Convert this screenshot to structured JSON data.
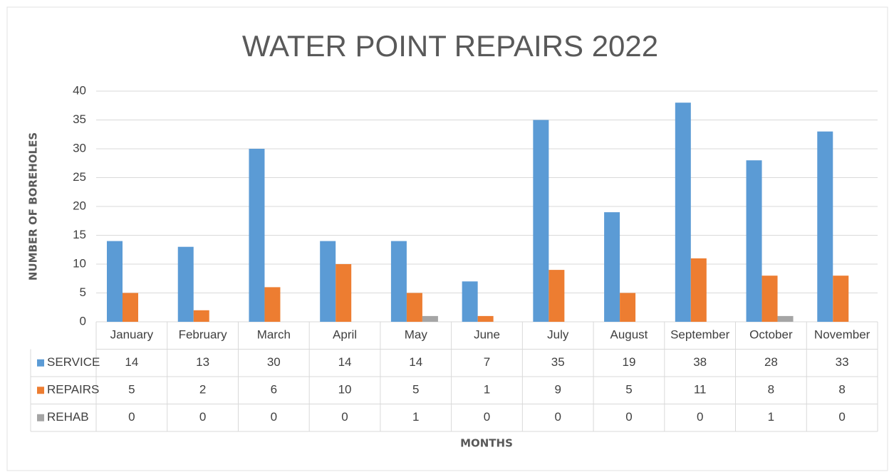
{
  "chart_data": {
    "type": "bar",
    "title": "WATER POINT REPAIRS 2022",
    "x_label": "MONTHS",
    "y_label": "NUMBER OF BOREHOLES",
    "categories": [
      "January",
      "February",
      "March",
      "April",
      "May",
      "June",
      "July",
      "August",
      "September",
      "October",
      "November"
    ],
    "series": [
      {
        "name": "SERVICE",
        "color": "#5b9bd5",
        "values": [
          14,
          13,
          30,
          14,
          14,
          7,
          35,
          19,
          38,
          28,
          33
        ]
      },
      {
        "name": "REPAIRS",
        "color": "#ed7d31",
        "values": [
          5,
          2,
          6,
          10,
          5,
          1,
          9,
          5,
          11,
          8,
          8
        ]
      },
      {
        "name": "REHAB",
        "color": "#a5a5a5",
        "values": [
          0,
          0,
          0,
          0,
          1,
          0,
          0,
          0,
          0,
          1,
          0
        ]
      }
    ],
    "ylim": [
      0,
      40
    ],
    "yticks": [
      0,
      5,
      10,
      15,
      20,
      25,
      30,
      35,
      40
    ],
    "grid": true
  }
}
